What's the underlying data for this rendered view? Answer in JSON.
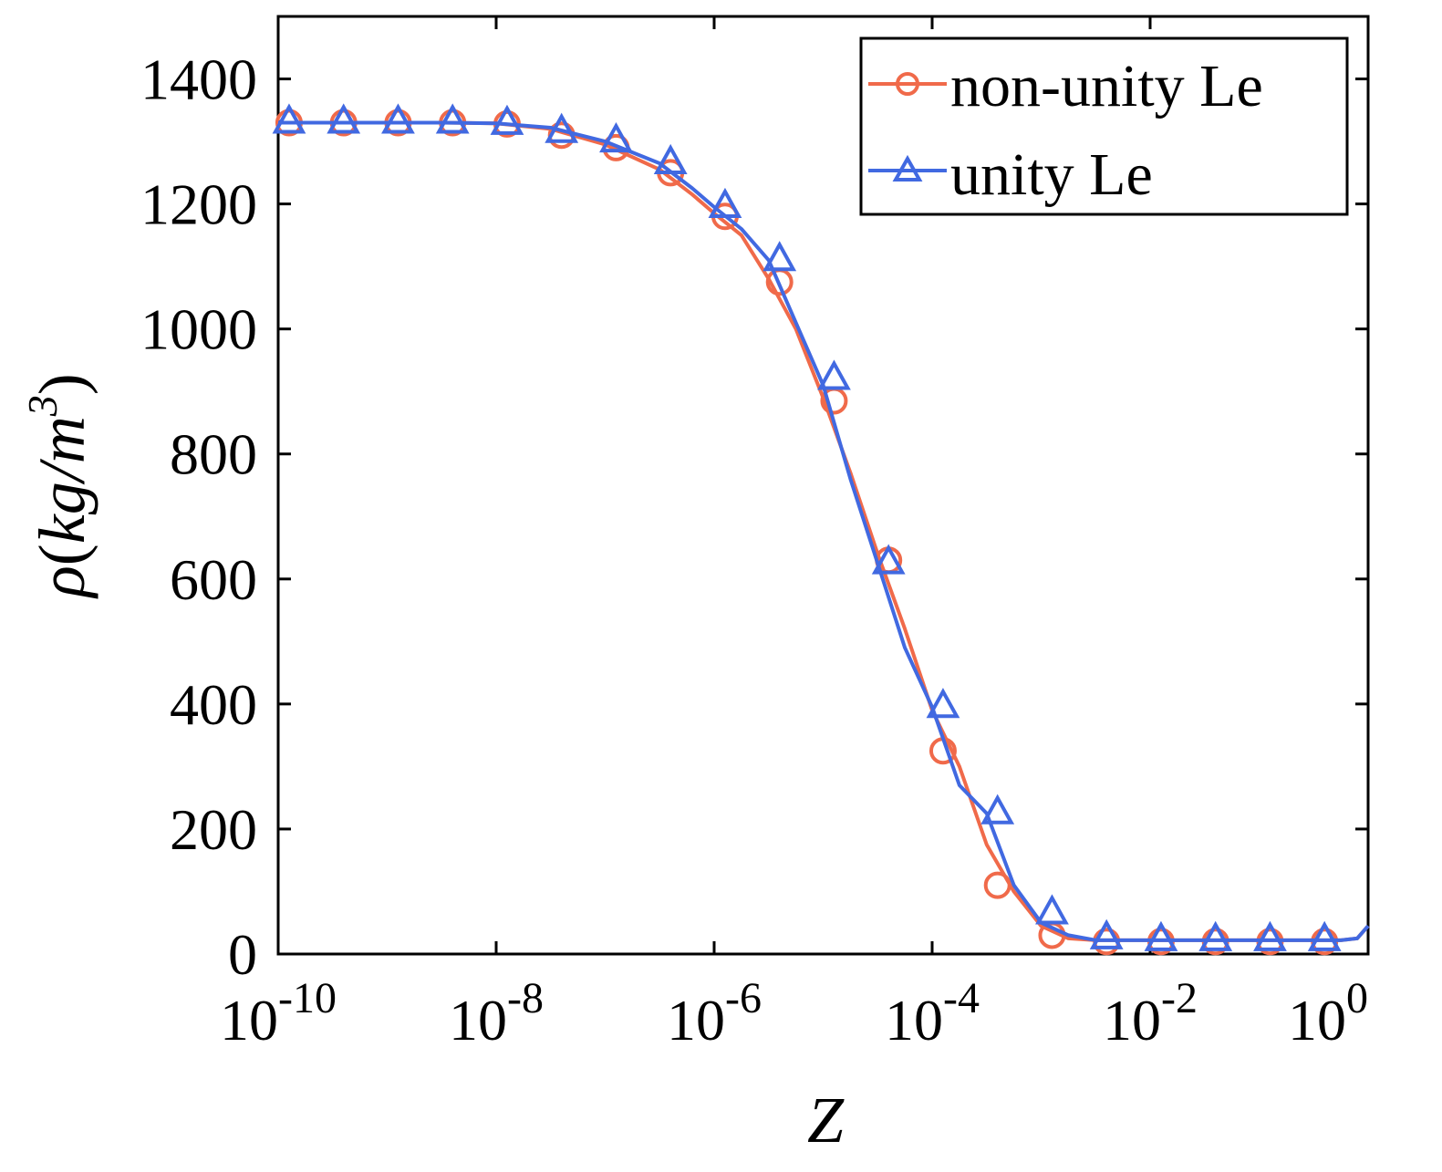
{
  "chart_data": {
    "type": "line",
    "xscale": "log",
    "xlim": [
      1e-10,
      1
    ],
    "ylim": [
      0,
      1500
    ],
    "xlabel": "Z",
    "ylabel": "ρ(kg/m³)",
    "ylabel_parts": {
      "rho": "ρ",
      "open": "(",
      "unit": "kg/m",
      "exp": "3",
      "close": ")"
    },
    "xticks": [
      {
        "value": 1e-10,
        "base": "10",
        "exp": "-10"
      },
      {
        "value": 1e-08,
        "base": "10",
        "exp": "-8"
      },
      {
        "value": 1e-06,
        "base": "10",
        "exp": "-6"
      },
      {
        "value": 0.0001,
        "base": "10",
        "exp": "-4"
      },
      {
        "value": 0.01,
        "base": "10",
        "exp": "-2"
      },
      {
        "value": 1,
        "base": "10",
        "exp": "0"
      }
    ],
    "yticks": [
      0,
      200,
      400,
      600,
      800,
      1000,
      1200,
      1400
    ],
    "ytick_labels": [
      "0",
      "200",
      "400",
      "600",
      "800",
      "1000",
      "1200",
      "1400"
    ],
    "grid": false,
    "legend_position": "top-right",
    "series": [
      {
        "name": "non-unity Le",
        "color": "#f06a4a",
        "marker": "circle",
        "line": [
          [
            -10,
            1330
          ],
          [
            -9.5,
            1330
          ],
          [
            -9,
            1330
          ],
          [
            -8.5,
            1330
          ],
          [
            -8,
            1329
          ],
          [
            -7.5,
            1320
          ],
          [
            -7,
            1295
          ],
          [
            -6.5,
            1255
          ],
          [
            -6.2,
            1215
          ],
          [
            -6,
            1185
          ],
          [
            -5.75,
            1150
          ],
          [
            -5.5,
            1080
          ],
          [
            -5.25,
            1000
          ],
          [
            -5,
            890
          ],
          [
            -4.75,
            770
          ],
          [
            -4.5,
            640
          ],
          [
            -4.25,
            520
          ],
          [
            -4,
            390
          ],
          [
            -3.75,
            300
          ],
          [
            -3.5,
            175
          ],
          [
            -3.25,
            100
          ],
          [
            -3,
            45
          ],
          [
            -2.75,
            25
          ],
          [
            -2.5,
            22
          ],
          [
            -2,
            22
          ],
          [
            -1,
            22
          ],
          [
            -0.25,
            22
          ],
          [
            -0.1,
            25
          ],
          [
            0,
            45
          ]
        ],
        "markers": [
          [
            -9.9,
            1330
          ],
          [
            -9.4,
            1330
          ],
          [
            -8.9,
            1330
          ],
          [
            -8.4,
            1330
          ],
          [
            -7.9,
            1328
          ],
          [
            -7.4,
            1310
          ],
          [
            -6.9,
            1290
          ],
          [
            -6.4,
            1250
          ],
          [
            -5.9,
            1180
          ],
          [
            -5.4,
            1075
          ],
          [
            -4.9,
            885
          ],
          [
            -4.4,
            630
          ],
          [
            -3.9,
            325
          ],
          [
            -3.4,
            110
          ],
          [
            -2.9,
            30
          ],
          [
            -2.4,
            20
          ],
          [
            -1.9,
            20
          ],
          [
            -1.4,
            20
          ],
          [
            -0.9,
            20
          ],
          [
            -0.4,
            20
          ]
        ]
      },
      {
        "name": "unity Le",
        "color": "#4169e1",
        "marker": "triangle",
        "line": [
          [
            -10,
            1330
          ],
          [
            -9.5,
            1330
          ],
          [
            -9,
            1330
          ],
          [
            -8.5,
            1330
          ],
          [
            -8,
            1329
          ],
          [
            -7.5,
            1322
          ],
          [
            -7,
            1300
          ],
          [
            -6.5,
            1265
          ],
          [
            -6.2,
            1225
          ],
          [
            -6,
            1195
          ],
          [
            -5.75,
            1160
          ],
          [
            -5.5,
            1110
          ],
          [
            -5.25,
            1010
          ],
          [
            -5,
            910
          ],
          [
            -4.75,
            760
          ],
          [
            -4.5,
            625
          ],
          [
            -4.25,
            490
          ],
          [
            -4,
            395
          ],
          [
            -3.75,
            270
          ],
          [
            -3.5,
            225
          ],
          [
            -3.25,
            110
          ],
          [
            -3,
            50
          ],
          [
            -2.75,
            30
          ],
          [
            -2.5,
            22
          ],
          [
            -2,
            22
          ],
          [
            -1,
            22
          ],
          [
            -0.25,
            22
          ],
          [
            -0.1,
            25
          ],
          [
            0,
            45
          ]
        ],
        "markers": [
          [
            -9.9,
            1330
          ],
          [
            -9.4,
            1330
          ],
          [
            -8.9,
            1330
          ],
          [
            -8.4,
            1330
          ],
          [
            -7.9,
            1328
          ],
          [
            -7.4,
            1315
          ],
          [
            -6.9,
            1300
          ],
          [
            -6.4,
            1265
          ],
          [
            -5.9,
            1195
          ],
          [
            -5.4,
            1110
          ],
          [
            -4.9,
            920
          ],
          [
            -4.4,
            625
          ],
          [
            -3.9,
            395
          ],
          [
            -3.4,
            225
          ],
          [
            -2.9,
            65
          ],
          [
            -2.4,
            25
          ],
          [
            -1.9,
            22
          ],
          [
            -1.4,
            22
          ],
          [
            -0.9,
            22
          ],
          [
            -0.4,
            22
          ]
        ]
      }
    ]
  }
}
